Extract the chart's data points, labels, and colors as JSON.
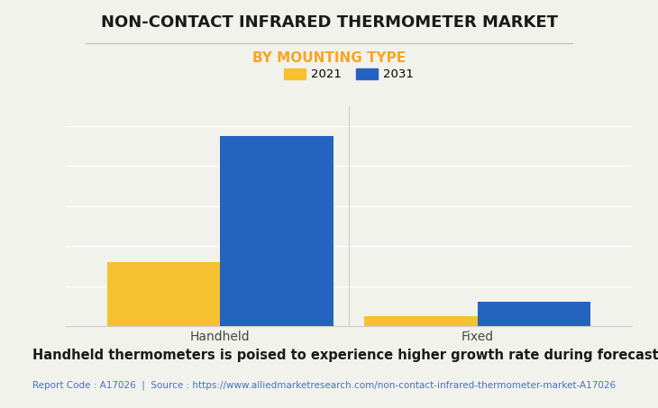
{
  "title": "NON-CONTACT INFRARED THERMOMETER MARKET",
  "subtitle": "BY MOUNTING TYPE",
  "categories": [
    "Handheld",
    "Fixed"
  ],
  "values_2021": [
    3.2,
    0.52
  ],
  "values_2031": [
    9.5,
    1.25
  ],
  "color_2021": "#F5C130",
  "color_2031": "#2563C0",
  "legend_labels": [
    "2021",
    "2031"
  ],
  "ylim": [
    0,
    11
  ],
  "yticks": [
    0,
    2,
    4,
    6,
    8,
    10
  ],
  "bg_color": "#F2F2EC",
  "title_fontsize": 13,
  "subtitle_fontsize": 11,
  "subtitle_color": "#F5A623",
  "footer_text": "Handheld thermometers is poised to experience higher growth rate during forecast period",
  "source_text": "Report Code : A17026  |  Source : https://www.alliedmarketresearch.com/non-contact-infrared-thermometer-market-A17026",
  "source_color": "#4472C4",
  "footer_fontsize": 10.5,
  "source_fontsize": 7.5,
  "bar_width": 0.22,
  "x_positions": [
    0.25,
    0.75
  ]
}
